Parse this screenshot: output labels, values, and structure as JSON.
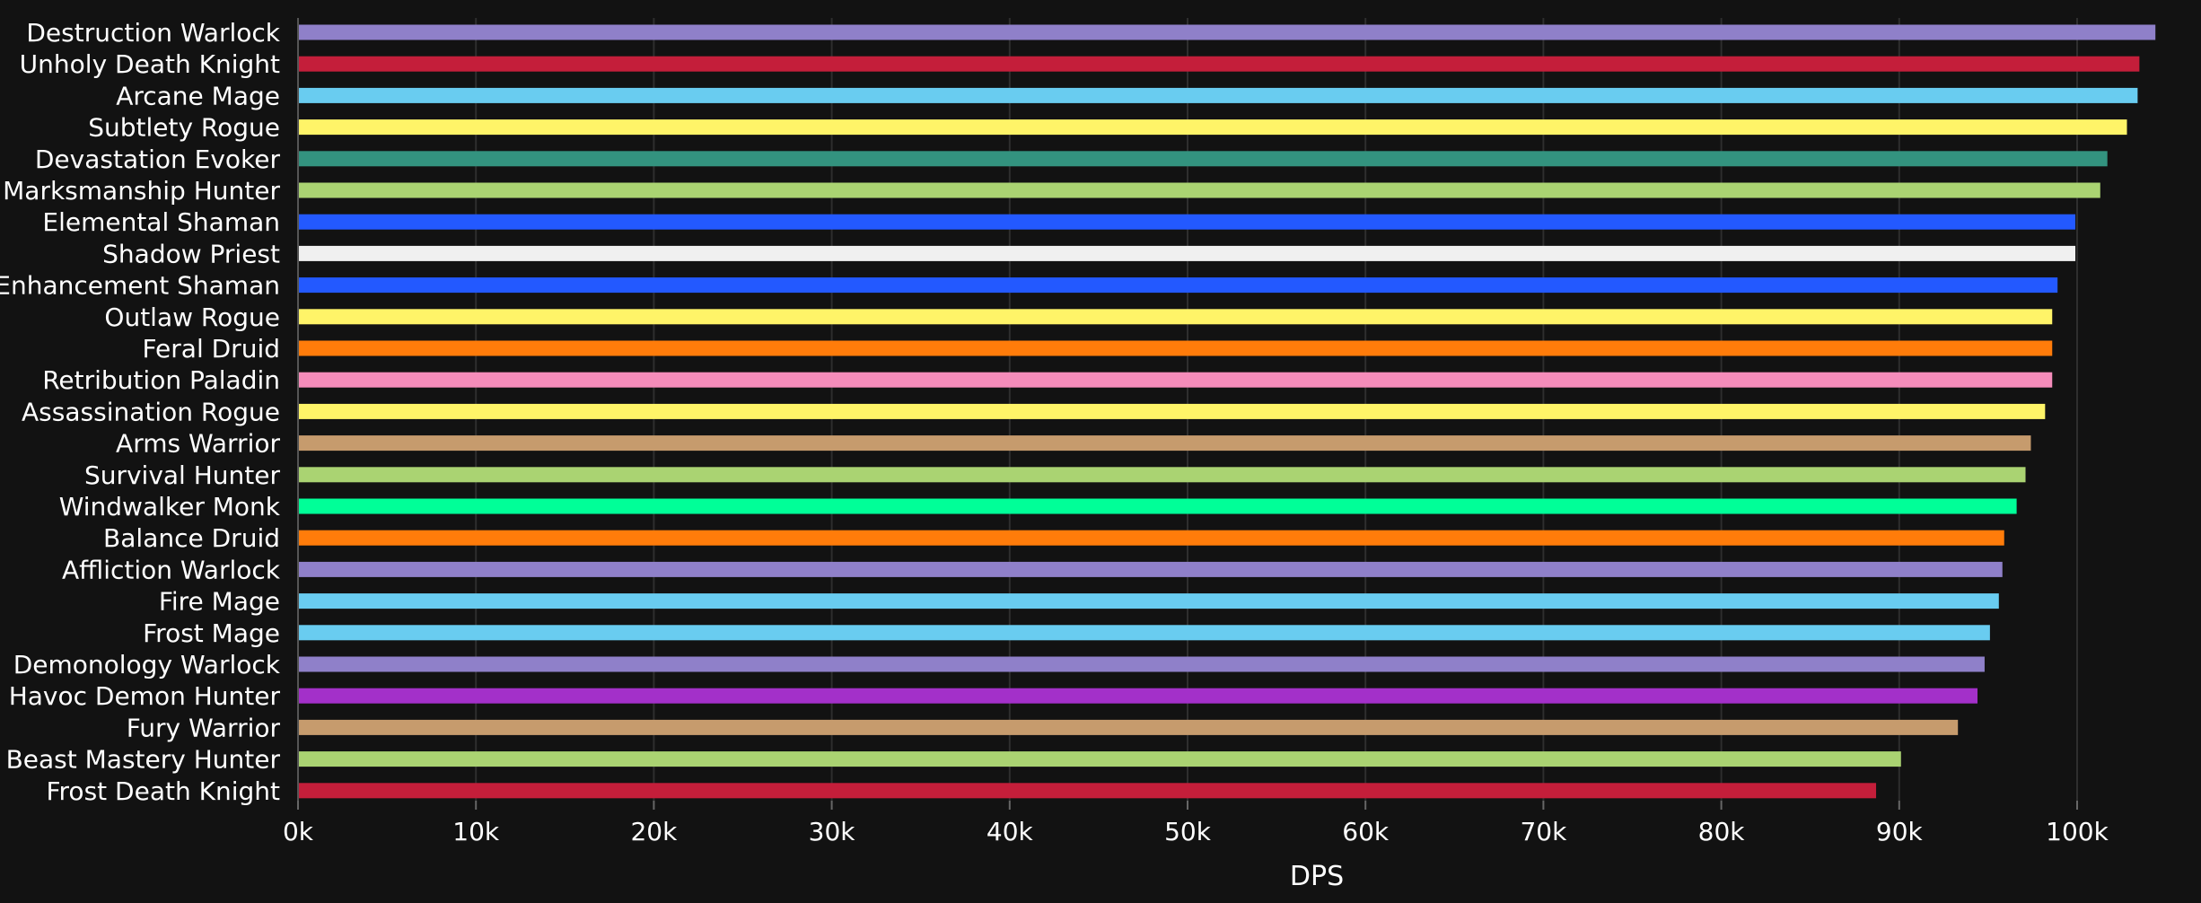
{
  "chart_data": {
    "type": "bar",
    "orientation": "horizontal",
    "xlabel": "DPS",
    "ylabel": "",
    "xlim": [
      0,
      104500
    ],
    "x_ticks": [
      0,
      10000,
      20000,
      30000,
      40000,
      50000,
      60000,
      70000,
      80000,
      90000,
      100000
    ],
    "x_tick_labels": [
      "0k",
      "10k",
      "20k",
      "30k",
      "40k",
      "50k",
      "60k",
      "70k",
      "80k",
      "90k",
      "100k"
    ],
    "grid": "vertical",
    "legend": "none",
    "background": "#121212",
    "bars": [
      {
        "label": "Destruction Warlock",
        "value": 104400,
        "color": "#8F80C9"
      },
      {
        "label": "Unholy Death Knight",
        "value": 103500,
        "color": "#C41E3A"
      },
      {
        "label": "Arcane Mage",
        "value": 103400,
        "color": "#69CCF0"
      },
      {
        "label": "Subtlety Rogue",
        "value": 102800,
        "color": "#FFF468"
      },
      {
        "label": "Devastation Evoker",
        "value": 101700,
        "color": "#33937F"
      },
      {
        "label": "Marksmanship Hunter",
        "value": 101300,
        "color": "#AAD372"
      },
      {
        "label": "Elemental Shaman",
        "value": 99900,
        "color": "#2359FF"
      },
      {
        "label": "Shadow Priest",
        "value": 99900,
        "color": "#F0F0F0"
      },
      {
        "label": "Enhancement Shaman",
        "value": 98900,
        "color": "#2359FF"
      },
      {
        "label": "Outlaw Rogue",
        "value": 98600,
        "color": "#FFF468"
      },
      {
        "label": "Feral Druid",
        "value": 98600,
        "color": "#FF7C0A"
      },
      {
        "label": "Retribution Paladin",
        "value": 98600,
        "color": "#F48CBA"
      },
      {
        "label": "Assassination Rogue",
        "value": 98200,
        "color": "#FFF468"
      },
      {
        "label": "Arms Warrior",
        "value": 97400,
        "color": "#C69B6D"
      },
      {
        "label": "Survival Hunter",
        "value": 97100,
        "color": "#AAD372"
      },
      {
        "label": "Windwalker Monk",
        "value": 96600,
        "color": "#00FF98"
      },
      {
        "label": "Balance Druid",
        "value": 95900,
        "color": "#FF7C0A"
      },
      {
        "label": "Affliction Warlock",
        "value": 95800,
        "color": "#8F80C9"
      },
      {
        "label": "Fire Mage",
        "value": 95600,
        "color": "#69CCF0"
      },
      {
        "label": "Frost Mage",
        "value": 95100,
        "color": "#69CCF0"
      },
      {
        "label": "Demonology Warlock",
        "value": 94800,
        "color": "#8F80C9"
      },
      {
        "label": "Havoc Demon Hunter",
        "value": 94400,
        "color": "#A330C9"
      },
      {
        "label": "Fury Warrior",
        "value": 93300,
        "color": "#C69B6D"
      },
      {
        "label": "Beast Mastery Hunter",
        "value": 90100,
        "color": "#AAD372"
      },
      {
        "label": "Frost Death Knight",
        "value": 88700,
        "color": "#C41E3A"
      }
    ]
  }
}
